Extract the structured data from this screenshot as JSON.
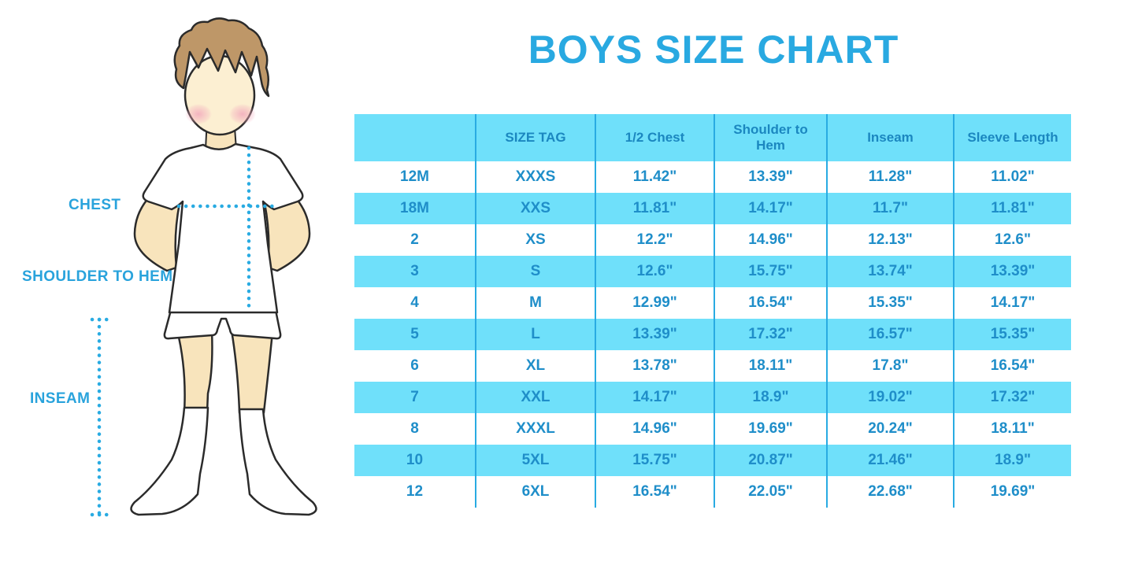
{
  "title": "BOYS SIZE CHART",
  "colors": {
    "accent": "#29ABE2",
    "title_text": "#29A9E1",
    "stripe": "#6FE0FA",
    "header_bg": "#6FE0FA",
    "header_text": "#1B87C0",
    "cell_text": "#1F8EC9",
    "label_text": "#29A3DC",
    "hair": "#BE9768",
    "skin_face": "#FCEFD2",
    "skin_limbs": "#F8E4BC",
    "blush": "#F2A9BC",
    "outline": "#2b2b2b"
  },
  "figure": {
    "labels": {
      "chest": "CHEST",
      "shoulder_to_hem": "SHOULDER TO HEM",
      "inseam": "INSEAM"
    }
  },
  "chart_data": {
    "type": "table",
    "title": "BOYS SIZE CHART",
    "columns": [
      "",
      "SIZE TAG",
      "1/2 Chest",
      "Shoulder to Hem",
      "Inseam",
      "Sleeve Length"
    ],
    "rows": [
      [
        "12M",
        "XXXS",
        "11.42\"",
        "13.39\"",
        "11.28\"",
        "11.02\""
      ],
      [
        "18M",
        "XXS",
        "11.81\"",
        "14.17\"",
        "11.7\"",
        "11.81\""
      ],
      [
        "2",
        "XS",
        "12.2\"",
        "14.96\"",
        "12.13\"",
        "12.6\""
      ],
      [
        "3",
        "S",
        "12.6\"",
        "15.75\"",
        "13.74\"",
        "13.39\""
      ],
      [
        "4",
        "M",
        "12.99\"",
        "16.54\"",
        "15.35\"",
        "14.17\""
      ],
      [
        "5",
        "L",
        "13.39\"",
        "17.32\"",
        "16.57\"",
        "15.35\""
      ],
      [
        "6",
        "XL",
        "13.78\"",
        "18.11\"",
        "17.8\"",
        "16.54\""
      ],
      [
        "7",
        "XXL",
        "14.17\"",
        "18.9\"",
        "19.02\"",
        "17.32\""
      ],
      [
        "8",
        "XXXL",
        "14.96\"",
        "19.69\"",
        "20.24\"",
        "18.11\""
      ],
      [
        "10",
        "5XL",
        "15.75\"",
        "20.87\"",
        "21.46\"",
        "18.9\""
      ],
      [
        "12",
        "6XL",
        "16.54\"",
        "22.05\"",
        "22.68\"",
        "19.69\""
      ]
    ]
  }
}
